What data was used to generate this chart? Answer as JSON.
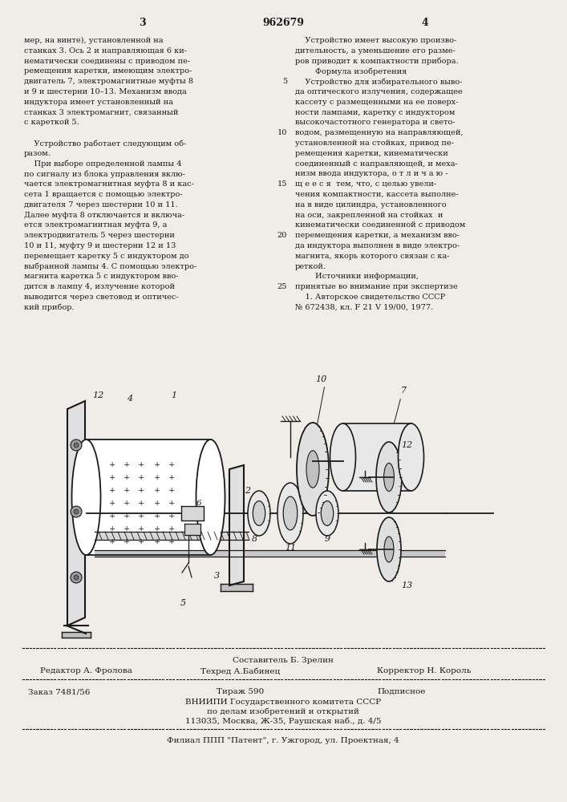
{
  "bg_color": "#f0ede8",
  "text_color": "#1a1a1a",
  "page_number_left": "3",
  "page_number_center": "962679",
  "page_number_right": "4",
  "col_left_text": [
    "мер, на винте), установленной на",
    "станках 3. Ось 2 и направляющая 6 ки-",
    "нематически соединены с приводом пе-",
    "ремещения каретки, имеющим электро-",
    "двигатель 7, электромагнитные муфты 8",
    "и 9 и шестерни 10–13. Механизм ввода",
    "индуктора имеет установленный на",
    "станках 3 электромагнит, связанный",
    "с кареткой 5.",
    "",
    "    Устройство работает следующим об-",
    "разом.",
    "    При выборе определенной лампы 4",
    "по сигналу из блока управления вклю-",
    "чается электромагнитная муфта 8 и кас-",
    "сета 1 вращается с помощью электро-",
    "двигателя 7 через шестерни 10 и 11.",
    "Далее муфта 8 отключается и включа-",
    "ется электромагнитная муфта 9, а",
    "электродвигатель 5 через шестерни",
    "10 и 11, муфту 9 и шестерни 12 и 13",
    "перемещает каретку 5 с индуктором до",
    "выбранной лампы 4. С помощью электро-",
    "магнита каретка 5 с индуктором вво-",
    "дится в лампу 4, излучение которой",
    "выводится через световод и оптичес-",
    "кий прибор."
  ],
  "col_right_text": [
    "    Устройство имеет высокую произво-",
    "дительность, а уменьшение его разме-",
    "ров приводит к компактности прибора.",
    "        Формула изобретения",
    "    Устройство для избирательного выво-",
    "да оптического излучения, содержащее",
    "кассету с размещенными на ее поверх-",
    "ности лампами, каретку с индуктором",
    "высокочастотного генератора и свето-",
    "водом, размещенную на направляющей,",
    "установленной на стойках, привод пе-",
    "ремещения каретки, кинематически",
    "соединенный с направляющей, и меха-",
    "низм ввода индуктора, о т л и ч а ю -",
    "щ е е с я  тем, что, с целью увели-",
    "чения компактности, кассета выполне-",
    "на в виде цилиндра, установленного",
    "на оси, закрепленной на стойках  и",
    "кинематически соединенной с приводом",
    "перемещения каретки, а механизм вво-",
    "да индуктора выполнен в виде электро-",
    "магнита, якорь которого связан с ка-",
    "реткой.",
    "        Источники информации,",
    "принятые во внимание при экспертизе",
    "    1. Авторское свидетельство СССР",
    "№ 672438, кл. F 21 V 19/00, 1977."
  ],
  "line_numbers": [
    5,
    10,
    15,
    20,
    25
  ],
  "footer_editor": "Редактор А. Фролова",
  "footer_compiler": "Составитель Б. Зрелин",
  "footer_corrector": "Корректор Н. Король",
  "footer_techred": "Техред А.Бабинец",
  "footer_order": "Заказ 7481/56",
  "footer_tirazh": "Тираж 590",
  "footer_podpisnoe": "Подписное",
  "footer_vniipи": "ВНИИПИ Государственного комитета СССР",
  "footer_po_delam": "по делам изобретений и открытий",
  "footer_address": "113035, Москва, Ж-35, Раушская наб., д. 4/5",
  "footer_filial": "Филиал ППП \"Патент\", г. Ужгород, ул. Проектная, 4",
  "dashed_line_color": "#333333"
}
